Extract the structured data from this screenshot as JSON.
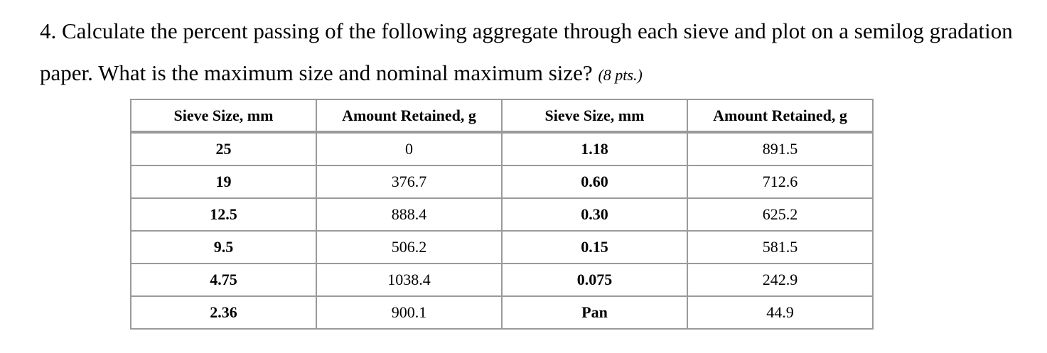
{
  "question": {
    "text": "4. Calculate the percent passing of the following aggregate through each sieve and plot on a semilog gradation paper. What is the maximum size and nominal maximum size?",
    "points": "(8 pts.)"
  },
  "table": {
    "headers": [
      "Sieve Size, mm",
      "Amount Retained, g",
      "Sieve Size, mm",
      "Amount Retained, g"
    ],
    "rows": [
      [
        "25",
        "0",
        "1.18",
        "891.5"
      ],
      [
        "19",
        "376.7",
        "0.60",
        "712.6"
      ],
      [
        "12.5",
        "888.4",
        "0.30",
        "625.2"
      ],
      [
        "9.5",
        "506.2",
        "0.15",
        "581.5"
      ],
      [
        "4.75",
        "1038.4",
        "0.075",
        "242.9"
      ],
      [
        "2.36",
        "900.1",
        "Pan",
        "44.9"
      ]
    ]
  }
}
